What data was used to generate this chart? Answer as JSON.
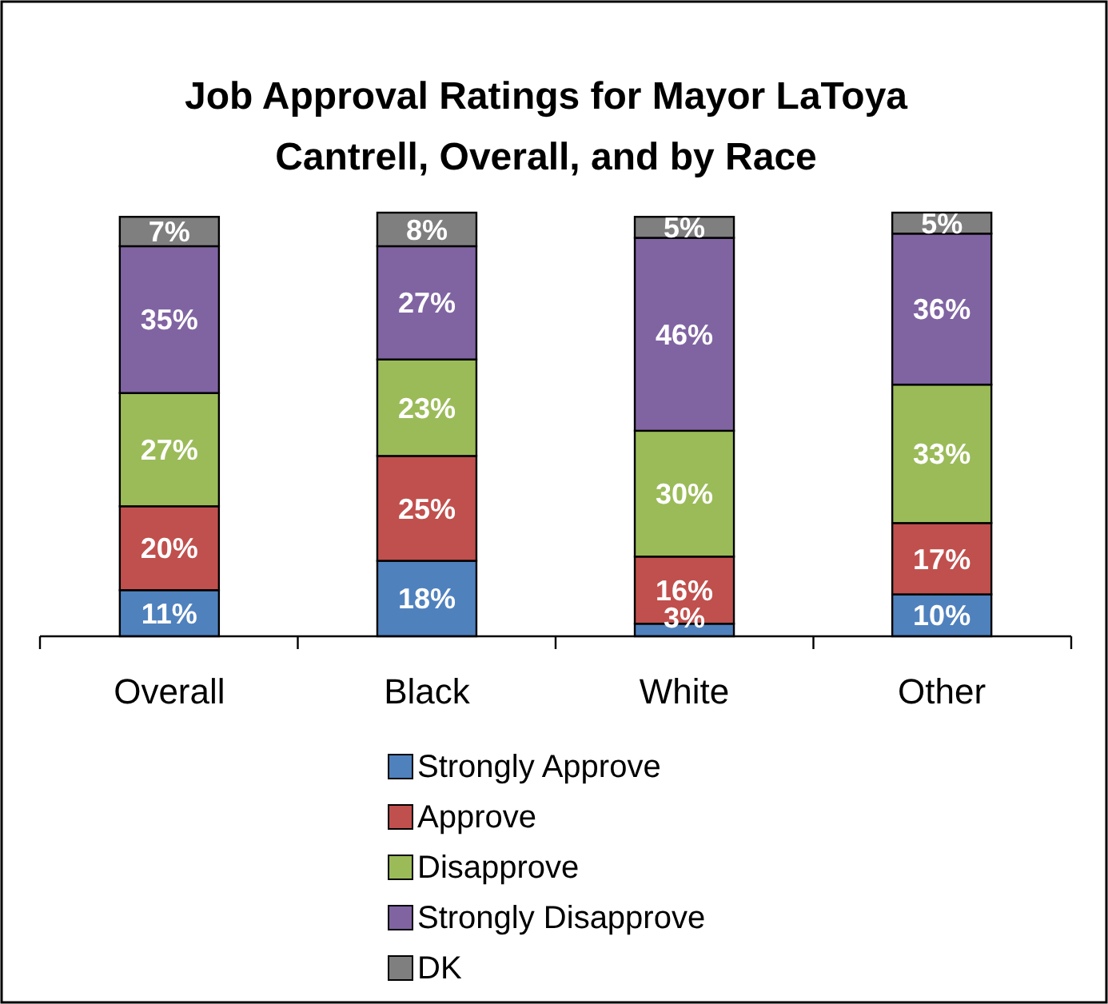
{
  "chart_data": {
    "type": "bar",
    "title": "Job Approval Ratings for Mayor LaToya Cantrell, Overall, and by Race",
    "categories": [
      "Overall",
      "Black",
      "White",
      "Other"
    ],
    "stacked": true,
    "legend": "bottom",
    "series": [
      {
        "name": "Strongly Approve",
        "color": "#4f81bd",
        "values": [
          11,
          18,
          3,
          10
        ],
        "value_labels": [
          "11%",
          "18%",
          "3%",
          "10%"
        ]
      },
      {
        "name": "Approve",
        "color": "#c0504d",
        "values": [
          20,
          25,
          16,
          17
        ],
        "value_labels": [
          "20%",
          "25%",
          "16%",
          "17%"
        ]
      },
      {
        "name": "Disapprove",
        "color": "#9bbb59",
        "values": [
          27,
          23,
          30,
          33
        ],
        "value_labels": [
          "27%",
          "23%",
          "30%",
          "33%"
        ]
      },
      {
        "name": "Strongly Disapprove",
        "color": "#8064a2",
        "values": [
          35,
          27,
          46,
          36
        ],
        "value_labels": [
          "35%",
          "27%",
          "46%",
          "36%"
        ]
      },
      {
        "name": "DK",
        "color": "#7f7f7f",
        "values": [
          7,
          8,
          5,
          5
        ],
        "value_labels": [
          "7%",
          "8%",
          "5%",
          "5%"
        ]
      }
    ]
  }
}
